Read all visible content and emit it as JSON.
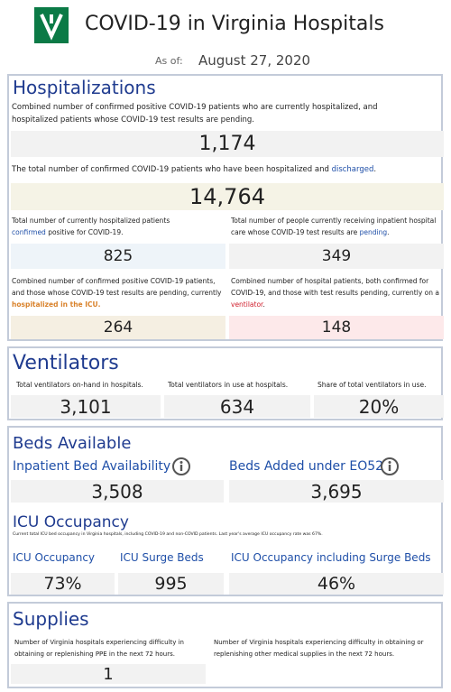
{
  "header": {
    "title": "COVID-19 in Virginia Hospitals",
    "as_of_label": "As of:",
    "as_of_date": "August 27, 2020"
  },
  "hospitalizations": {
    "title": "Hospitalizations",
    "current": {
      "description": [
        "Combined number of confirmed positive COVID-19 patients who are currently hospitalized, and",
        "hospitalized patients whose COVID-19 test results are pending."
      ],
      "value": "1,174"
    },
    "discharged": {
      "description": [
        "The total number of confirmed COVID-19 patients who have been hospitalized and ",
        "discharged",
        "."
      ],
      "value": "14,764"
    },
    "confirmed": {
      "description": [
        "Total number of currently hospitalized patients",
        "confirmed",
        " positive for COVID-19."
      ],
      "value": "825"
    },
    "pending": {
      "description": [
        "Total number of people currently receiving inpatient hospital",
        "care whose COVID-19 test results are ",
        "pending",
        "."
      ],
      "value": "349"
    },
    "icu": {
      "description": [
        "Combined number of confirmed positive COVID-19 patients,",
        "and those whose COVID-19 test results are pending, currently",
        "hospitalized in the ICU."
      ],
      "value": "264"
    },
    "ventilator": {
      "description": [
        "Combined number of hospital patients, both confirmed for",
        "COVID-19, and those with test results pending, currently on a",
        "ventilator",
        "."
      ],
      "value": "148"
    }
  },
  "ventilators": {
    "title": "Ventilators",
    "items": [
      {
        "label": "Total ventilators on-hand in hospitals.",
        "value": "3,101"
      },
      {
        "label": "Total ventilators in use at hospitals.",
        "value": "634"
      },
      {
        "label": "Share of total ventilators in use.",
        "value": "20%"
      }
    ]
  },
  "beds": {
    "title": "Beds Available",
    "items": [
      {
        "label": "Inpatient Bed Availability",
        "value": "3,508"
      },
      {
        "label": "Beds Added under EO52",
        "value": "3,695"
      }
    ],
    "icu_title": "ICU Occupancy",
    "icu_note": "Current total ICU bed occupancy in Virginia hospitals, including COVID-19 and non-COVID patients. Last year's average ICU occupancy rate was 67%.",
    "icu_items": [
      {
        "label": "ICU Occupancy",
        "value": "73%"
      },
      {
        "label": "ICU Surge Beds",
        "value": "995"
      },
      {
        "label": "ICU Occupancy including Surge Beds",
        "value": "46%"
      }
    ]
  },
  "supplies": {
    "title": "Supplies",
    "items": [
      {
        "description": [
          "Number of Virginia hospitals experiencing difficulty in",
          "obtaining or replenishing PPE in the next 72 hours."
        ],
        "value": "1"
      },
      {
        "description": [
          "Number of Virginia hospitals experiencing difficulty in obtaining or",
          "replenishing other medical supplies in the next 72 hours."
        ]
      }
    ]
  }
}
